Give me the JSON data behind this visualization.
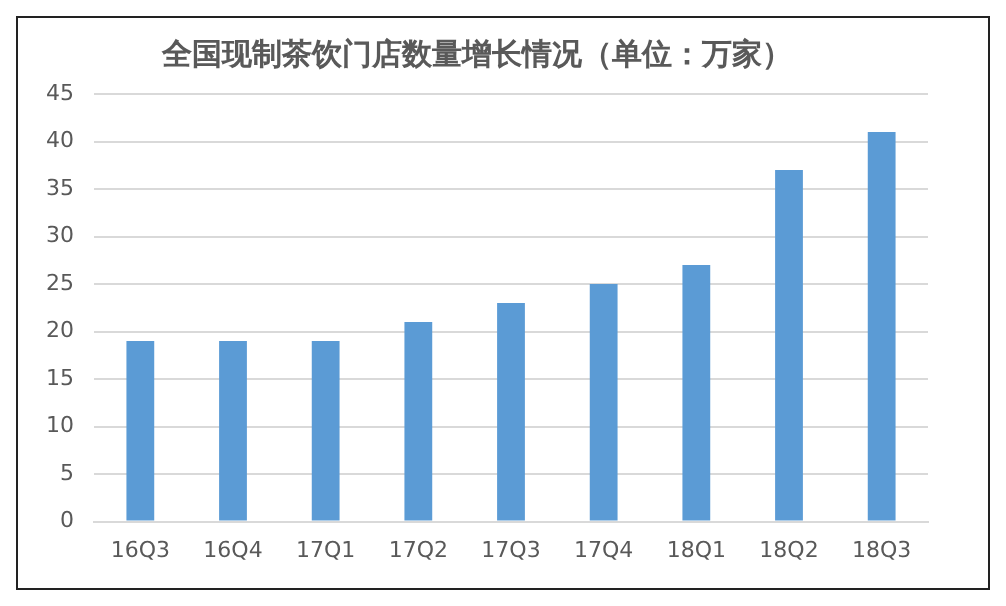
{
  "chart_data": {
    "type": "bar",
    "title": "全国现制茶饮门店数量增长情况（单位：万家）",
    "categories": [
      "16Q3",
      "16Q4",
      "17Q1",
      "17Q2",
      "17Q3",
      "17Q4",
      "18Q1",
      "18Q2",
      "18Q3"
    ],
    "values": [
      19,
      19,
      19,
      21,
      23,
      25,
      27,
      37,
      41
    ],
    "color": "#5b9bd5",
    "ylim": [
      0,
      45
    ],
    "yticks": [
      0,
      5,
      10,
      15,
      20,
      25,
      30,
      35,
      40,
      45
    ],
    "grid": "y",
    "legend": false
  }
}
